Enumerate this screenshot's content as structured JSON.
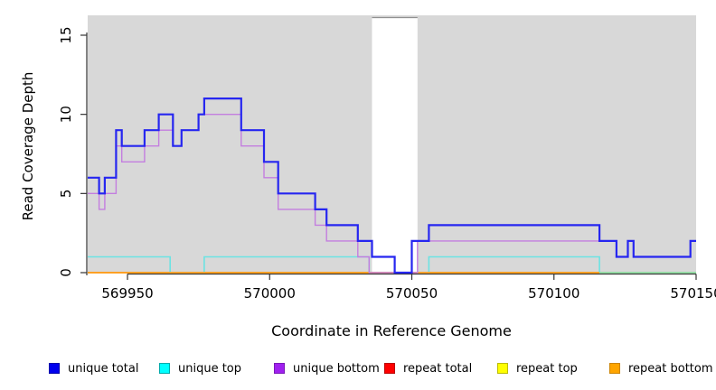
{
  "figure": {
    "xlabel": "Coordinate in Reference Genome",
    "ylabel": "Read Coverage Depth"
  },
  "legend": {
    "position": "bottom",
    "items": [
      {
        "label": "unique total",
        "fill": "#0000EE",
        "border": "#0000AA"
      },
      {
        "label": "unique top",
        "fill": "#00FFFF",
        "border": "#00AAAA"
      },
      {
        "label": "unique bottom",
        "fill": "#A020F0",
        "border": "#7A18B8"
      },
      {
        "label": "repeat total",
        "fill": "#FF0000",
        "border": "#BB0000"
      },
      {
        "label": "repeat top",
        "fill": "#FFFF00",
        "border": "#BBBB00"
      },
      {
        "label": "repeat bottom",
        "fill": "#FFA500",
        "border": "#CC8400"
      }
    ]
  },
  "chart_data": {
    "type": "line",
    "subtype": "step-coverage",
    "title": "",
    "xlabel": "Coordinate in Reference Genome",
    "ylabel": "Read Coverage Depth",
    "xlim": [
      569936,
      570150
    ],
    "ylim": [
      0,
      16.25
    ],
    "x_ticks": [
      "569950",
      "570000",
      "570050",
      "570100",
      "570150"
    ],
    "x_tick_values": [
      569950,
      570000,
      570050,
      570100,
      570150
    ],
    "y_ticks": [
      "0",
      "5",
      "10",
      "15"
    ],
    "y_tick_values": [
      0,
      5,
      10,
      15
    ],
    "grid": false,
    "panel_background": "#D8D8D8",
    "masked_region": {
      "start": 570036,
      "end": 570052,
      "color": "#FFFFFF"
    },
    "series": [
      {
        "name": "repeat total",
        "color": "#DD2222",
        "width": 1.4,
        "steps": [
          [
            569936,
            0
          ]
        ],
        "end": 570116
      },
      {
        "name": "repeat top",
        "color": "#EEEE22",
        "width": 1.4,
        "steps": [
          [
            569936,
            0
          ]
        ],
        "end": 570116
      },
      {
        "name": "unique top",
        "color": "#6CE3E3",
        "width": 1.6,
        "steps": [
          [
            569936,
            1
          ],
          [
            569965,
            0
          ],
          [
            569977,
            1
          ],
          [
            570035,
            0
          ],
          [
            570056,
            1
          ],
          [
            570116,
            0
          ]
        ],
        "end": 570150
      },
      {
        "name": "repeat bottom",
        "color": "#FF9D1E",
        "width": 1.8,
        "steps": [
          [
            569936,
            0
          ]
        ],
        "end": 570116
      },
      {
        "name": "zero overlay",
        "color": "#92D992",
        "width": 1.6,
        "steps": [
          [
            570116,
            0
          ]
        ],
        "end": 570150
      },
      {
        "name": "unique bottom",
        "color": "#C37EDF",
        "width": 1.4,
        "steps": [
          [
            569936,
            5
          ],
          [
            569940,
            4
          ],
          [
            569942,
            5
          ],
          [
            569946,
            8
          ],
          [
            569948,
            7
          ],
          [
            569956,
            8
          ],
          [
            569961,
            9
          ],
          [
            569966,
            8
          ],
          [
            569969,
            9
          ],
          [
            569975,
            10
          ],
          [
            569990,
            8
          ],
          [
            569998,
            6
          ],
          [
            570003,
            4
          ],
          [
            570016,
            3
          ],
          [
            570020,
            2
          ],
          [
            570031,
            1
          ],
          [
            570035,
            0
          ],
          [
            570052,
            2
          ],
          [
            570116,
            2
          ],
          [
            570122,
            1
          ],
          [
            570126,
            2
          ],
          [
            570128,
            1
          ],
          [
            570148,
            2
          ]
        ],
        "end": 570150
      },
      {
        "name": "unique total",
        "color": "#2626F0",
        "width": 2.2,
        "steps": [
          [
            569936,
            6
          ],
          [
            569940,
            5
          ],
          [
            569942,
            6
          ],
          [
            569946,
            9
          ],
          [
            569948,
            8
          ],
          [
            569956,
            9
          ],
          [
            569961,
            10
          ],
          [
            569966,
            8
          ],
          [
            569969,
            9
          ],
          [
            569975,
            10
          ],
          [
            569977,
            11
          ],
          [
            569990,
            9
          ],
          [
            569998,
            7
          ],
          [
            570003,
            5
          ],
          [
            570016,
            4
          ],
          [
            570020,
            3
          ],
          [
            570031,
            2
          ],
          [
            570036,
            1
          ],
          [
            570044,
            0
          ],
          [
            570050,
            2
          ],
          [
            570056,
            3
          ],
          [
            570116,
            2
          ],
          [
            570122,
            1
          ],
          [
            570126,
            2
          ],
          [
            570128,
            1
          ],
          [
            570148,
            2
          ]
        ],
        "end": 570150
      }
    ]
  }
}
